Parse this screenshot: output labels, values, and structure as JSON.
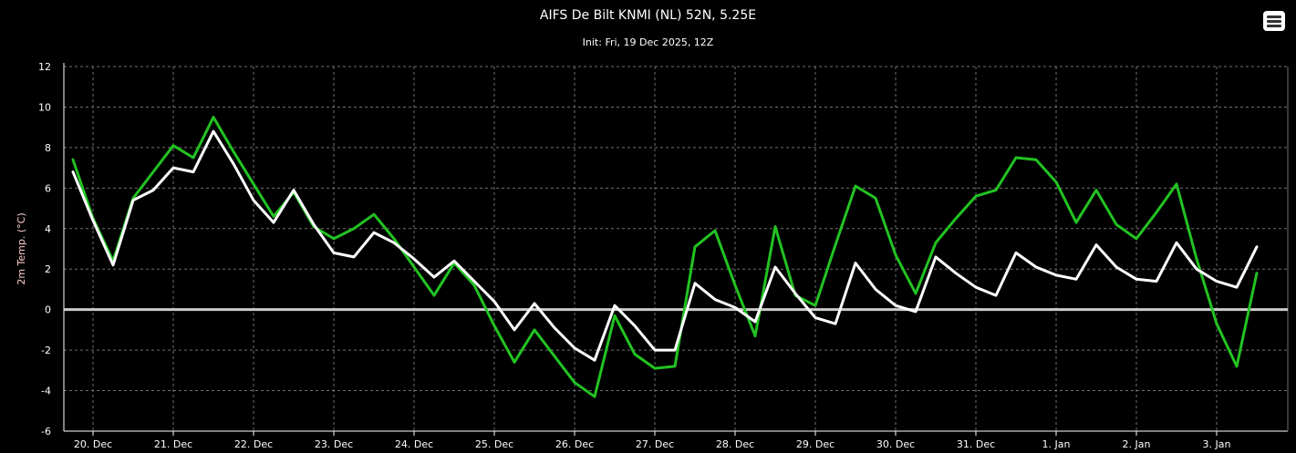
{
  "title": "AIFS De Bilt KNMI (NL) 52N, 5.25E",
  "subtitle": "Init: Fri, 19 Dec 2025, 12Z",
  "menu_icon": "hamburger-menu-icon",
  "colors": {
    "background": "#000000",
    "text": "#ffffff",
    "ylabel": "#ffcccc",
    "green_series": "#22c322",
    "white_series": "#ffffff",
    "grid": "#707070"
  },
  "chart_data": {
    "type": "line",
    "ylabel": "2m Temp. (°C)",
    "xlabel": "",
    "ylim": [
      -6,
      12
    ],
    "yticks": [
      -6,
      -4,
      -2,
      0,
      2,
      4,
      6,
      8,
      10,
      12
    ],
    "x_tick_labels": [
      "20. Dec",
      "21. Dec",
      "22. Dec",
      "23. Dec",
      "24. Dec",
      "25. Dec",
      "26. Dec",
      "27. Dec",
      "28. Dec",
      "29. Dec",
      "30. Dec",
      "31. Dec",
      "1. Jan",
      "2. Jan",
      "3. Jan"
    ],
    "x_step_hours": 6,
    "x_start": "2025-12-19 18Z",
    "grid": true,
    "zero_line": true,
    "legend": "none",
    "series": [
      {
        "color": "#22c322",
        "values": [
          7.4,
          4.5,
          2.4,
          5.5,
          6.8,
          8.1,
          7.5,
          9.5,
          7.8,
          6.2,
          4.6,
          5.8,
          4.1,
          3.5,
          4.0,
          4.7,
          3.5,
          2.1,
          0.7,
          2.3,
          1.2,
          -0.8,
          -2.6,
          -1.0,
          -2.3,
          -3.6,
          -4.3,
          -0.3,
          -2.2,
          -2.9,
          -2.8,
          3.1,
          3.9,
          1.2,
          -1.3,
          4.1,
          0.7,
          0.2,
          3.2,
          6.1,
          5.5,
          2.7,
          0.8,
          3.3,
          4.5,
          5.6,
          5.9,
          7.5,
          7.4,
          6.3,
          4.3,
          5.9,
          4.2,
          3.5,
          4.8,
          6.2,
          2.5,
          -0.7,
          -2.8,
          1.8
        ]
      },
      {
        "color": "#ffffff",
        "values": [
          6.8,
          4.4,
          2.2,
          5.4,
          5.9,
          7.0,
          6.8,
          8.8,
          7.2,
          5.4,
          4.3,
          5.9,
          4.2,
          2.8,
          2.6,
          3.8,
          3.3,
          2.5,
          1.6,
          2.4,
          1.4,
          0.4,
          -1.0,
          0.3,
          -0.9,
          -1.9,
          -2.5,
          0.2,
          -0.8,
          -2.0,
          -2.0,
          1.3,
          0.5,
          0.1,
          -0.6,
          2.1,
          0.8,
          -0.4,
          -0.7,
          2.3,
          1.0,
          0.2,
          -0.1,
          2.6,
          1.8,
          1.1,
          0.7,
          2.8,
          2.1,
          1.7,
          1.5,
          3.2,
          2.1,
          1.5,
          1.4,
          3.3,
          2.0,
          1.4,
          1.1,
          3.1
        ]
      }
    ]
  }
}
